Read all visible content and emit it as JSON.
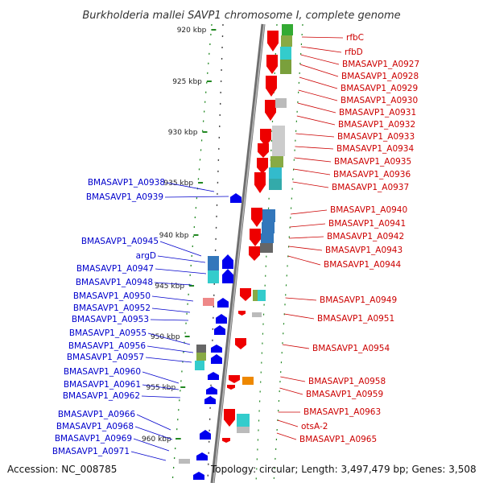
{
  "title": "Burkholderia mallei SAVP1 chromosome I, complete genome",
  "accession": "Accession: NC_008785",
  "topology": "Topology: circular; Length: 3,497,479 bp; Genes: 3,508",
  "colors": {
    "forward": "#ee0000",
    "reverse": "#0000ee",
    "backbone": "#888888",
    "ticks": "#228822"
  },
  "kbp_labels": [
    {
      "kbp": 920,
      "label": "920 kbp"
    },
    {
      "kbp": 925,
      "label": "925 kbp"
    },
    {
      "kbp": 930,
      "label": "930 kbp"
    },
    {
      "kbp": 935,
      "label": "935 kbp"
    },
    {
      "kbp": 940,
      "label": "940 kbp"
    },
    {
      "kbp": 945,
      "label": "945 kbp"
    },
    {
      "kbp": 950,
      "label": "950 kbp"
    },
    {
      "kbp": 955,
      "label": "955 kbp"
    },
    {
      "kbp": 960,
      "label": "960 kbp"
    }
  ],
  "right_genes": [
    "rfbC",
    "rfbD",
    "BMASAVP1_A0927",
    "BMASAVP1_A0928",
    "BMASAVP1_A0929",
    "BMASAVP1_A0930",
    "BMASAVP1_A0931",
    "BMASAVP1_A0932",
    "BMASAVP1_A0933",
    "BMASAVP1_A0934",
    "BMASAVP1_A0935",
    "BMASAVP1_A0936",
    "BMASAVP1_A0937",
    "BMASAVP1_A0940",
    "BMASAVP1_A0941",
    "BMASAVP1_A0942",
    "BMASAVP1_A0943",
    "BMASAVP1_A0944",
    "BMASAVP1_A0949",
    "BMASAVP1_A0951",
    "BMASAVP1_A0954",
    "BMASAVP1_A0958",
    "BMASAVP1_A0959",
    "BMASAVP1_A0963",
    "otsA-2",
    "BMASAVP1_A0965"
  ],
  "left_genes": [
    "BMASAVP1_A0938",
    "BMASAVP1_A0939",
    "BMASAVP1_A0945",
    "argD",
    "BMASAVP1_A0947",
    "BMASAVP1_A0948",
    "BMASAVP1_A0950",
    "BMASAVP1_A0952",
    "BMASAVP1_A0953",
    "BMASAVP1_A0955",
    "BMASAVP1_A0956",
    "BMASAVP1_A0957",
    "BMASAVP1_A0960",
    "BMASAVP1_A0961",
    "BMASAVP1_A0962",
    "BMASAVP1_A0966",
    "BMASAVP1_A0968",
    "BMASAVP1_A0969",
    "BMASAVP1_A0971"
  ]
}
